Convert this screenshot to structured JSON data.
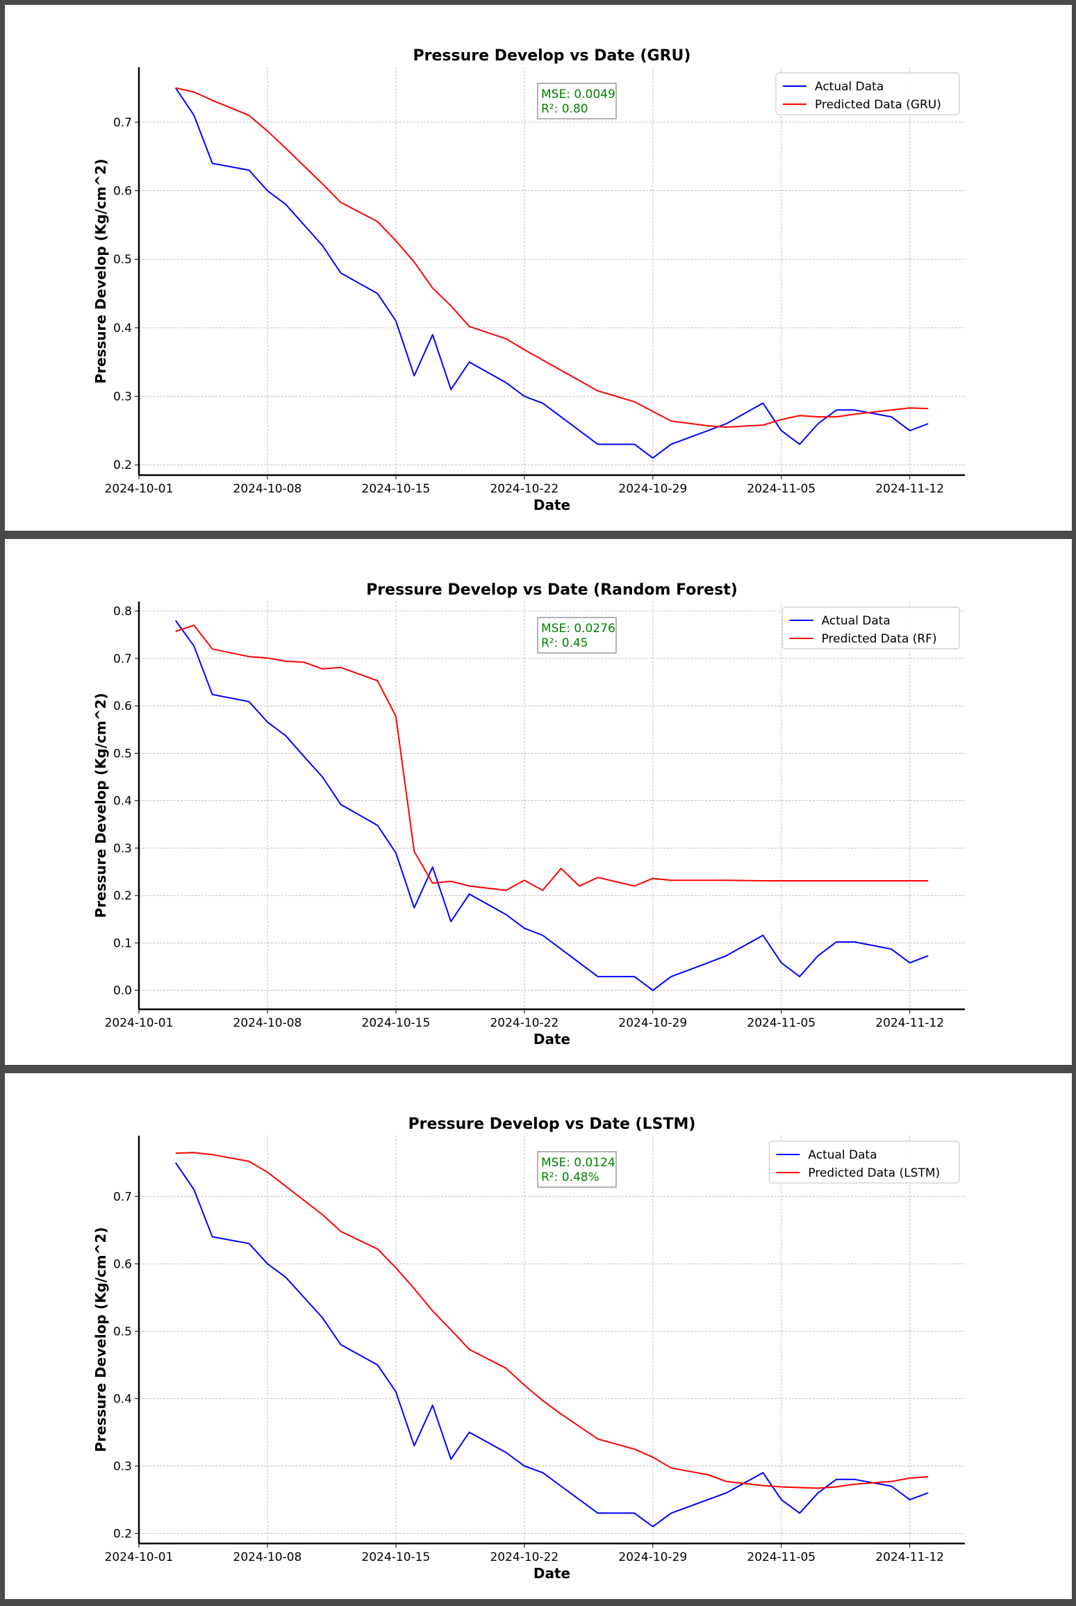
{
  "charts": [
    {
      "type": "line",
      "title": "Pressure Develop vs Date (GRU)",
      "xlabel": "Date",
      "ylabel": "Pressure Develop (Kg/cm^2)",
      "ylim": [
        0.185,
        0.78
      ],
      "yticks": [
        0.2,
        0.3,
        0.4,
        0.5,
        0.6,
        0.7
      ],
      "ytick_labels": [
        "0.2",
        "0.3",
        "0.4",
        "0.5",
        "0.6",
        "0.7"
      ],
      "metrics": [
        "MSE: 0.0049",
        "R²: 0.80"
      ],
      "legend_position": "upper-right",
      "grid": true
    },
    {
      "type": "line",
      "title": "Pressure Develop vs Date (Random Forest)",
      "xlabel": "Date",
      "ylabel": "Pressure Develop (Kg/cm^2)",
      "ylim": [
        -0.04,
        0.82
      ],
      "yticks": [
        0.0,
        0.1,
        0.2,
        0.3,
        0.4,
        0.5,
        0.6,
        0.7,
        0.8
      ],
      "ytick_labels": [
        "0.0",
        "0.1",
        "0.2",
        "0.3",
        "0.4",
        "0.5",
        "0.6",
        "0.7",
        "0.8"
      ],
      "metrics": [
        "MSE: 0.0276",
        "R²: 0.45"
      ],
      "legend_position": "upper-right",
      "grid": true
    },
    {
      "type": "line",
      "title": "Pressure Develop vs Date (LSTM)",
      "xlabel": "Date",
      "ylabel": "Pressure Develop (Kg/cm^2)",
      "ylim": [
        0.185,
        0.79
      ],
      "yticks": [
        0.2,
        0.3,
        0.4,
        0.5,
        0.6,
        0.7
      ],
      "ytick_labels": [
        "0.2",
        "0.3",
        "0.4",
        "0.5",
        "0.6",
        "0.7"
      ],
      "metrics": [
        "MSE: 0.0124",
        "R²: 0.48%"
      ],
      "legend_position": "upper-right",
      "grid": true
    }
  ],
  "chart_data": [
    {
      "type": "line",
      "x": [
        "2024-10-03",
        "2024-10-04",
        "2024-10-05",
        "2024-10-07",
        "2024-10-08",
        "2024-10-09",
        "2024-10-11",
        "2024-10-12",
        "2024-10-14",
        "2024-10-15",
        "2024-10-16",
        "2024-10-17",
        "2024-10-18",
        "2024-10-19",
        "2024-10-21",
        "2024-10-22",
        "2024-10-23",
        "2024-10-26",
        "2024-10-28",
        "2024-10-29",
        "2024-10-30",
        "2024-11-01",
        "2024-11-02",
        "2024-11-04",
        "2024-11-05",
        "2024-11-06",
        "2024-11-07",
        "2024-11-08",
        "2024-11-09",
        "2024-11-11",
        "2024-11-12",
        "2024-11-13"
      ],
      "series": [
        {
          "name": "Actual Data",
          "color": "#0000ff",
          "values": [
            0.75,
            0.71,
            0.64,
            0.63,
            0.6,
            0.58,
            0.52,
            0.48,
            0.45,
            0.41,
            0.33,
            0.39,
            0.31,
            0.35,
            0.32,
            0.3,
            0.29,
            0.23,
            0.23,
            0.21,
            0.23,
            0.25,
            0.26,
            0.29,
            0.25,
            0.23,
            0.26,
            0.28,
            0.28,
            0.27,
            0.25,
            0.26
          ]
        },
        {
          "name": "Predicted Data (GRU)",
          "color": "#ff0000",
          "values": [
            0.75,
            0.744,
            0.732,
            0.71,
            0.687,
            0.662,
            0.61,
            0.583,
            0.555,
            0.527,
            0.496,
            0.458,
            0.432,
            0.402,
            0.384,
            0.368,
            0.353,
            0.308,
            0.292,
            0.278,
            0.264,
            0.257,
            0.255,
            0.258,
            0.266,
            0.272,
            0.27,
            0.27,
            0.274,
            0.28,
            0.283,
            0.282
          ]
        }
      ],
      "title": "Pressure Develop vs Date (GRU)",
      "xlabel": "Date",
      "ylabel": "Pressure Develop (Kg/cm^2)",
      "xticks": [
        "2024-10-01",
        "2024-10-08",
        "2024-10-15",
        "2024-10-22",
        "2024-10-29",
        "2024-11-05",
        "2024-11-12"
      ]
    },
    {
      "type": "line",
      "x": [
        "2024-10-03",
        "2024-10-04",
        "2024-10-05",
        "2024-10-07",
        "2024-10-08",
        "2024-10-09",
        "2024-10-10",
        "2024-10-11",
        "2024-10-12",
        "2024-10-14",
        "2024-10-15",
        "2024-10-16",
        "2024-10-17",
        "2024-10-18",
        "2024-10-19",
        "2024-10-21",
        "2024-10-22",
        "2024-10-23",
        "2024-10-24",
        "2024-10-25",
        "2024-10-26",
        "2024-10-28",
        "2024-10-29",
        "2024-10-30",
        "2024-11-01",
        "2024-11-02",
        "2024-11-04",
        "2024-11-05",
        "2024-11-06",
        "2024-11-07",
        "2024-11-08",
        "2024-11-09",
        "2024-11-11",
        "2024-11-12",
        "2024-11-13"
      ],
      "series": [
        {
          "name": "Actual Data",
          "color": "#0000ff",
          "values": [
            0.78,
            0.726,
            0.624,
            0.609,
            0.566,
            0.537,
            0.493,
            0.45,
            0.392,
            0.348,
            0.29,
            0.174,
            0.26,
            0.145,
            0.203,
            0.16,
            0.131,
            0.116,
            0.087,
            0.058,
            0.029,
            0.029,
            0.0,
            0.029,
            0.058,
            0.073,
            0.116,
            0.058,
            0.029,
            0.073,
            0.102,
            0.102,
            0.087,
            0.058,
            0.073
          ]
        },
        {
          "name": "Predicted Data (RF)",
          "color": "#ff0000",
          "values": [
            0.757,
            0.77,
            0.72,
            0.704,
            0.701,
            0.694,
            0.692,
            0.678,
            0.681,
            0.653,
            0.578,
            0.293,
            0.226,
            0.23,
            0.22,
            0.211,
            0.232,
            0.211,
            0.257,
            0.22,
            0.238,
            0.22,
            0.236,
            0.232,
            0.232,
            0.232,
            0.231,
            0.231,
            0.231,
            0.231,
            0.231,
            0.231,
            0.231,
            0.231,
            0.231
          ]
        }
      ],
      "title": "Pressure Develop vs Date (Random Forest)",
      "xlabel": "Date",
      "ylabel": "Pressure Develop (Kg/cm^2)",
      "xticks": [
        "2024-10-01",
        "2024-10-08",
        "2024-10-15",
        "2024-10-22",
        "2024-10-29",
        "2024-11-05",
        "2024-11-12"
      ]
    },
    {
      "type": "line",
      "x": [
        "2024-10-03",
        "2024-10-04",
        "2024-10-05",
        "2024-10-07",
        "2024-10-08",
        "2024-10-09",
        "2024-10-11",
        "2024-10-12",
        "2024-10-14",
        "2024-10-15",
        "2024-10-16",
        "2024-10-17",
        "2024-10-18",
        "2024-10-19",
        "2024-10-21",
        "2024-10-22",
        "2024-10-23",
        "2024-10-24",
        "2024-10-26",
        "2024-10-28",
        "2024-10-29",
        "2024-10-30",
        "2024-11-01",
        "2024-11-02",
        "2024-11-04",
        "2024-11-05",
        "2024-11-06",
        "2024-11-07",
        "2024-11-08",
        "2024-11-09",
        "2024-11-11",
        "2024-11-12",
        "2024-11-13"
      ],
      "series": [
        {
          "name": "Actual Data",
          "color": "#0000ff",
          "values": [
            0.75,
            0.71,
            0.64,
            0.63,
            0.6,
            0.58,
            0.52,
            0.48,
            0.45,
            0.41,
            0.33,
            0.39,
            0.31,
            0.35,
            0.32,
            0.3,
            0.29,
            0.27,
            0.23,
            0.23,
            0.21,
            0.23,
            0.25,
            0.26,
            0.29,
            0.25,
            0.23,
            0.26,
            0.28,
            0.28,
            0.27,
            0.25,
            0.26
          ]
        },
        {
          "name": "Predicted Data (LSTM)",
          "color": "#ff0000",
          "values": [
            0.764,
            0.765,
            0.762,
            0.752,
            0.736,
            0.715,
            0.673,
            0.648,
            0.622,
            0.594,
            0.563,
            0.53,
            0.502,
            0.473,
            0.445,
            0.42,
            0.397,
            0.377,
            0.34,
            0.325,
            0.313,
            0.297,
            0.287,
            0.277,
            0.271,
            0.269,
            0.268,
            0.267,
            0.269,
            0.273,
            0.277,
            0.282,
            0.284
          ]
        }
      ],
      "title": "Pressure Develop vs Date (LSTM)",
      "xlabel": "Date",
      "ylabel": "Pressure Develop (Kg/cm^2)",
      "xticks": [
        "2024-10-01",
        "2024-10-08",
        "2024-10-15",
        "2024-10-22",
        "2024-10-29",
        "2024-11-05",
        "2024-11-12"
      ]
    }
  ]
}
